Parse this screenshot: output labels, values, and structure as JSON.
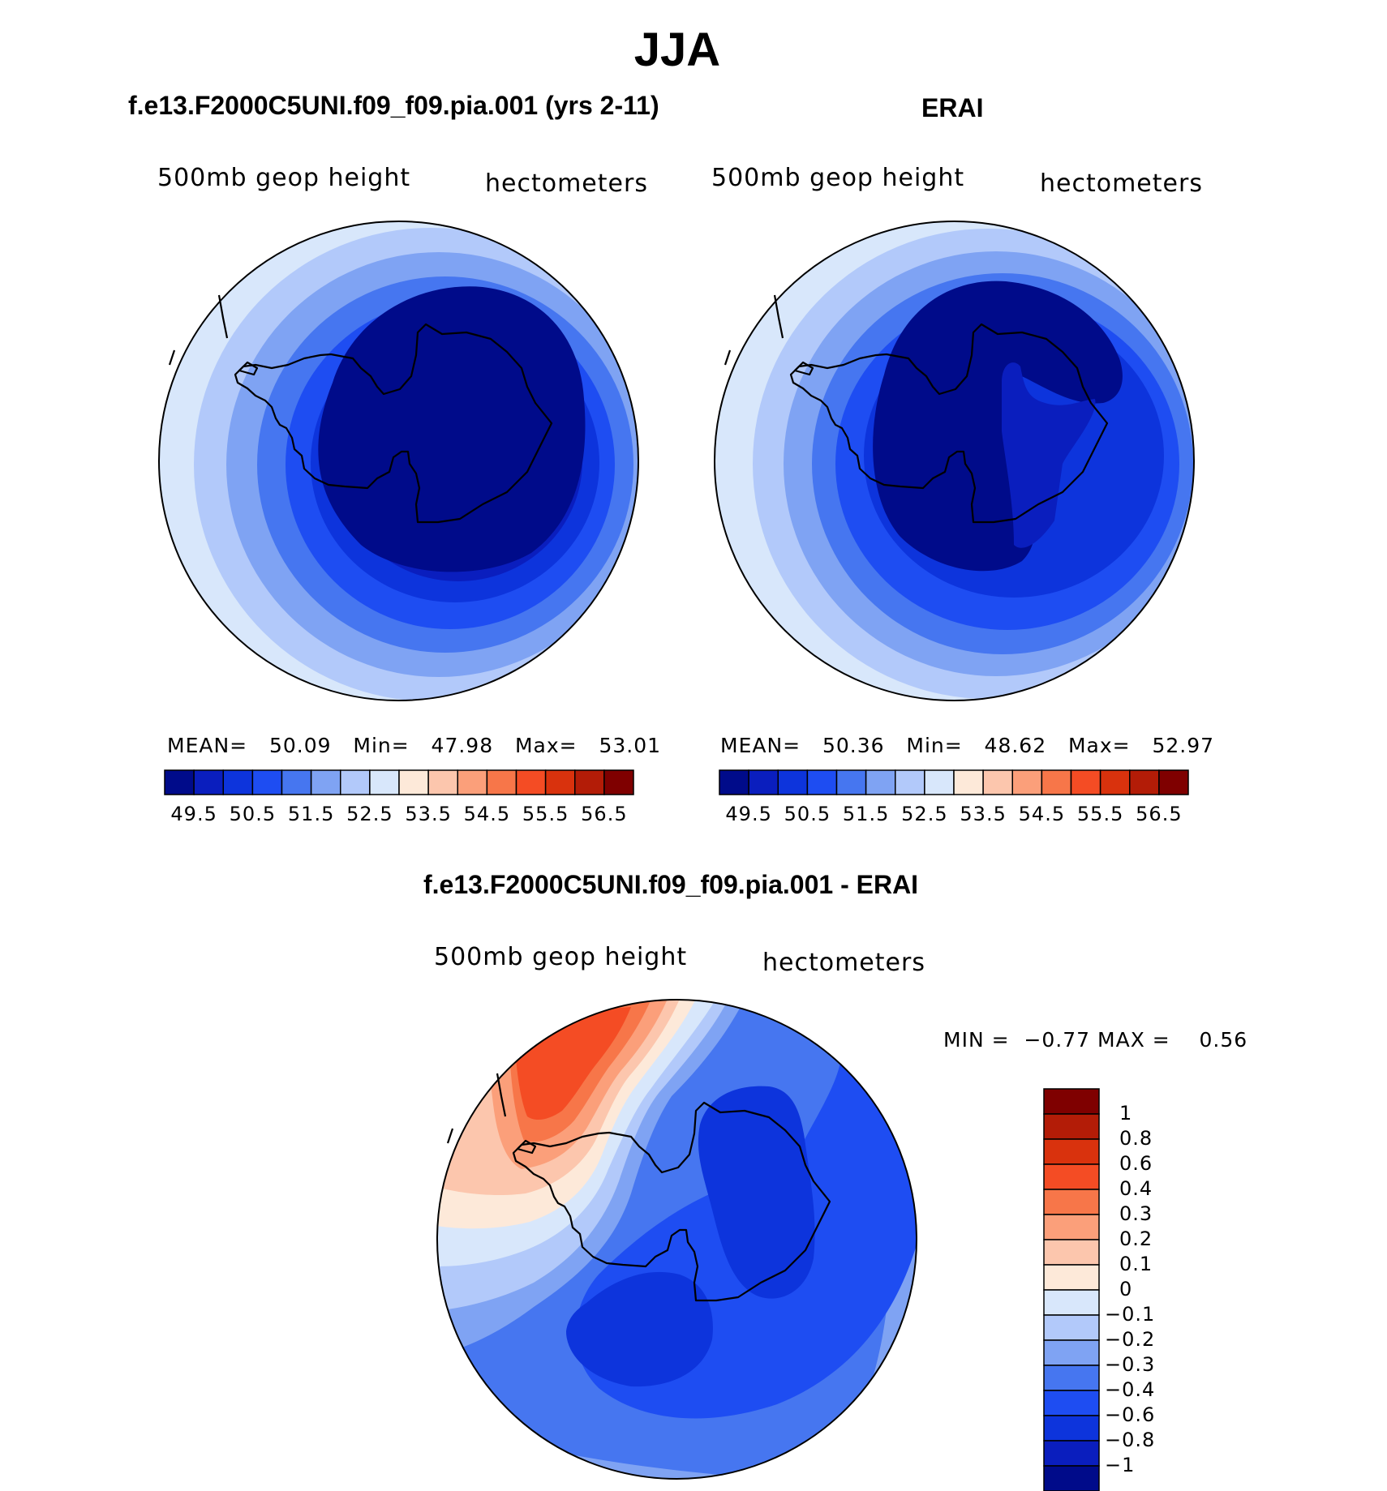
{
  "page_title": "JJA",
  "chart_data": [
    {
      "type": "heatmap",
      "panel": "model",
      "title": "f.e13.F2000C5UNI.f09_f09.pia.001 (yrs 2-11)",
      "variable_label": "500mb  geop  height",
      "units_label": "hectometers",
      "stats": {
        "mean_label": "MEAN=",
        "mean": "50.09",
        "min_label": "Min=",
        "min": "47.98",
        "max_label": "Max=",
        "max": "53.01"
      },
      "projection": "south polar stereographic",
      "levels": [
        "49.5",
        "50",
        "50.5",
        "51",
        "51.5",
        "52",
        "52.5",
        "53",
        "53.5",
        "54",
        "54.5",
        "55",
        "55.5",
        "56",
        "56.5"
      ],
      "tick_labels": [
        "49.5",
        "50.5",
        "51.5",
        "52.5",
        "53.5",
        "54.5",
        "55.5",
        "56.5"
      ],
      "colors": [
        "#000b8a",
        "#0a1ebe",
        "#0d34dc",
        "#1e4df2",
        "#4676f0",
        "#7fa3f3",
        "#b2c9fa",
        "#d8e7fb",
        "#fde9d9",
        "#fcc6ad",
        "#fb9f7a",
        "#f77649",
        "#f44c24",
        "#d9320d",
        "#b31c07",
        "#7f0000"
      ]
    },
    {
      "type": "heatmap",
      "panel": "obs",
      "title": "ERAI",
      "variable_label": "500mb  geop  height",
      "units_label": "hectometers",
      "stats": {
        "mean_label": "MEAN=",
        "mean": "50.36",
        "min_label": "Min=",
        "min": "48.62",
        "max_label": "Max=",
        "max": "52.97"
      },
      "projection": "south polar stereographic",
      "levels": [
        "49.5",
        "50",
        "50.5",
        "51",
        "51.5",
        "52",
        "52.5",
        "53",
        "53.5",
        "54",
        "54.5",
        "55",
        "55.5",
        "56",
        "56.5"
      ],
      "tick_labels": [
        "49.5",
        "50.5",
        "51.5",
        "52.5",
        "53.5",
        "54.5",
        "55.5",
        "56.5"
      ],
      "colors": [
        "#000b8a",
        "#0a1ebe",
        "#0d34dc",
        "#1e4df2",
        "#4676f0",
        "#7fa3f3",
        "#b2c9fa",
        "#d8e7fb",
        "#fde9d9",
        "#fcc6ad",
        "#fb9f7a",
        "#f77649",
        "#f44c24",
        "#d9320d",
        "#b31c07",
        "#7f0000"
      ]
    },
    {
      "type": "heatmap",
      "panel": "difference",
      "title": "f.e13.F2000C5UNI.f09_f09.pia.001 - ERAI",
      "variable_label": "500mb  geop  height",
      "units_label": "hectometers",
      "stats": {
        "min_label": "MIN =",
        "min": "−0.77",
        "max_label": "MAX =",
        "max": "0.56"
      },
      "projection": "south polar stereographic",
      "levels": [
        "1",
        "0.8",
        "0.6",
        "0.4",
        "0.3",
        "0.2",
        "0.1",
        "0",
        "−0.1",
        "−0.2",
        "−0.3",
        "−0.4",
        "−0.6",
        "−0.8",
        "−1"
      ],
      "colors_top_to_bottom": [
        "#7f0000",
        "#b31c07",
        "#d9320d",
        "#f44c24",
        "#f77649",
        "#fb9f7a",
        "#fcc6ad",
        "#fde9d9",
        "#d8e7fb",
        "#b2c9fa",
        "#7fa3f3",
        "#4676f0",
        "#1e4df2",
        "#0d34dc",
        "#0a1ebe",
        "#000b8a"
      ]
    }
  ]
}
